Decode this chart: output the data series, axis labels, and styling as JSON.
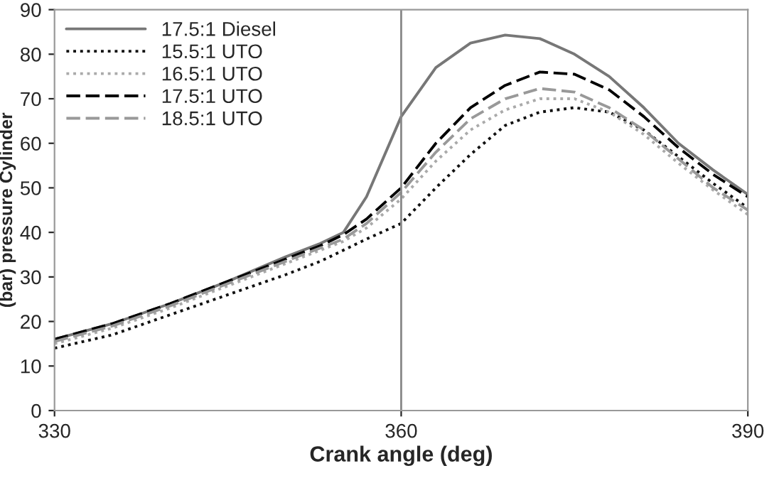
{
  "chart_data": {
    "type": "line",
    "xlabel": "Crank angle (deg)",
    "ylabel": "(bar) pressure Cylinder",
    "x": [
      330,
      335,
      340,
      345,
      350,
      353,
      355,
      357,
      360,
      363,
      366,
      369,
      372,
      375,
      378,
      381,
      384,
      387,
      390
    ],
    "series": [
      {
        "name": "17.5:1 Diesel",
        "color": "#777777",
        "line_style": "solid",
        "values": [
          16,
          19.5,
          24,
          29,
          34.5,
          37.5,
          40,
          48,
          66,
          77,
          82.5,
          84.3,
          83.5,
          80,
          75,
          68,
          60,
          54,
          48.5
        ]
      },
      {
        "name": "15.5:1 UTO",
        "color": "#111111",
        "line_style": "dotted",
        "values": [
          14,
          17,
          21.5,
          26,
          30.5,
          33.5,
          36,
          38.5,
          42,
          50,
          57.5,
          64,
          67,
          68,
          67,
          63,
          57,
          51,
          45.5
        ]
      },
      {
        "name": "16.5:1 UTO",
        "color": "#aaaaaa",
        "line_style": "dotted",
        "values": [
          15,
          18.5,
          23,
          28,
          33,
          36,
          38,
          41,
          47.5,
          56,
          63,
          67.5,
          70,
          70,
          67,
          62,
          55.5,
          49.5,
          44
        ]
      },
      {
        "name": "17.5:1 UTO",
        "color": "#000000",
        "line_style": "dashed",
        "values": [
          16,
          19.5,
          24,
          29,
          34,
          37,
          39.5,
          43,
          50,
          60,
          68,
          73,
          76,
          75.5,
          72,
          66,
          59,
          53,
          48
        ]
      },
      {
        "name": "18.5:1 UTO",
        "color": "#999999",
        "line_style": "dashed",
        "values": [
          15.5,
          19,
          23.5,
          28.5,
          33.5,
          36.5,
          38.5,
          42,
          49,
          58,
          65.5,
          70,
          72.3,
          71.5,
          68,
          63,
          56.5,
          50,
          45
        ]
      }
    ],
    "xlim": [
      330,
      390
    ],
    "xticks": [
      330,
      360,
      390
    ],
    "ylim": [
      0,
      90
    ],
    "yticks": [
      0,
      10,
      20,
      30,
      40,
      50,
      60,
      70,
      80,
      90
    ],
    "ref_lines": [
      {
        "axis": "x",
        "value": 360,
        "color": "#888888"
      }
    ],
    "grid": false,
    "legend": "top left",
    "marker": "none"
  }
}
